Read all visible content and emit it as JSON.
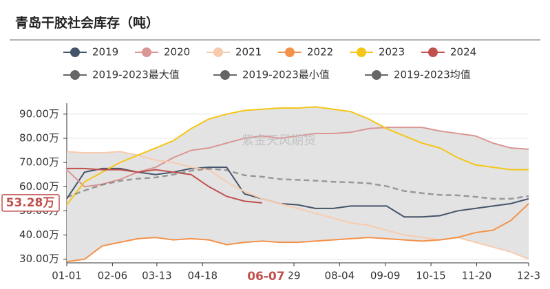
{
  "chart_data": {
    "type": "line",
    "title": "青岛干胶社会库存（吨）",
    "watermark": "紫金天风期货",
    "x": [
      0,
      14,
      28,
      42,
      56,
      70,
      84,
      98,
      112,
      126,
      140,
      154,
      168,
      182,
      196,
      210,
      224,
      238,
      252,
      266,
      280,
      294,
      308,
      322,
      336,
      350,
      364
    ],
    "xlim": [
      0,
      364
    ],
    "xticks": [
      {
        "value": 0,
        "label": "01-01"
      },
      {
        "value": 36,
        "label": "02-06"
      },
      {
        "value": 71,
        "label": "03-13"
      },
      {
        "value": 107,
        "label": "04-18"
      },
      {
        "value": 179,
        "label": "29"
      },
      {
        "value": 215,
        "label": "08-04"
      },
      {
        "value": 251,
        "label": "09-09"
      },
      {
        "value": 287,
        "label": "10-15"
      },
      {
        "value": 323,
        "label": "11-20"
      },
      {
        "value": 364,
        "label": "12-3"
      }
    ],
    "ylim": [
      28.5,
      94.5
    ],
    "yticks": [
      {
        "value": 30,
        "label": "30.00万"
      },
      {
        "value": 40,
        "label": "40.00万"
      },
      {
        "value": 50,
        "label": "50.00万"
      },
      {
        "value": 60,
        "label": "60.00万"
      },
      {
        "value": 70,
        "label": "70.00万"
      },
      {
        "value": 80,
        "label": "80.00万"
      },
      {
        "value": 90,
        "label": "90.00万"
      }
    ],
    "grid": true,
    "x_highlight": {
      "value": 157,
      "label": "06-07"
    },
    "y_highlight": {
      "value": 53.28,
      "label": "53.28万"
    },
    "series": [
      {
        "name": "2019",
        "color": "#44546a",
        "kind": "line",
        "values": [
          55,
          66,
          67.5,
          67.5,
          66,
          65,
          66,
          67.5,
          68,
          68,
          57,
          55,
          53,
          52.5,
          51,
          51,
          52,
          52,
          52,
          47.5,
          47.5,
          48,
          50,
          51,
          52,
          53,
          55
        ]
      },
      {
        "name": "2020",
        "color": "#d99694",
        "kind": "line",
        "values": [
          67,
          60,
          61,
          63,
          66,
          68,
          72,
          75,
          76,
          78,
          80,
          81,
          80,
          81,
          82,
          82,
          82.5,
          84,
          84.5,
          84.5,
          84.5,
          83,
          82,
          81,
          78,
          76,
          75.5
        ]
      },
      {
        "name": "2021",
        "color": "#f8cbad",
        "kind": "line",
        "values": [
          74.5,
          74,
          74,
          74.5,
          73,
          71,
          70,
          68,
          67,
          62,
          58,
          55,
          53,
          51,
          49,
          47,
          45,
          44,
          42,
          40,
          39,
          38,
          39,
          37,
          35,
          33,
          30
        ]
      },
      {
        "name": "2022",
        "color": "#f4914a",
        "kind": "line",
        "values": [
          29,
          30,
          35.5,
          37,
          38.5,
          39,
          38,
          38.5,
          38,
          36,
          37,
          37.5,
          37,
          37,
          37.5,
          38,
          38.5,
          39,
          38.5,
          38,
          37.5,
          38,
          39,
          41,
          42,
          46,
          53
        ]
      },
      {
        "name": "2023",
        "color": "#f5c518",
        "kind": "line",
        "values": [
          52.5,
          62,
          66,
          70,
          73,
          76,
          79,
          84,
          88,
          90,
          91.5,
          92,
          92.5,
          92.5,
          93,
          92,
          91,
          88,
          84,
          81,
          78,
          76,
          72,
          69,
          68,
          67,
          67
        ]
      },
      {
        "name": "2024",
        "color": "#c0504d",
        "kind": "line",
        "values": [
          67.5,
          67.5,
          67,
          67,
          66,
          67,
          66,
          65,
          60,
          56,
          54,
          53.28,
          null,
          null,
          null,
          null,
          null,
          null,
          null,
          null,
          null,
          null,
          null,
          null,
          null,
          null,
          null
        ]
      },
      {
        "name": "2019-2023最大值",
        "color": "#666666",
        "kind": "band-max",
        "values": [
          74.5,
          74,
          74,
          74.5,
          73,
          76,
          79,
          84,
          88,
          90,
          91.5,
          92,
          92.5,
          92.5,
          93,
          92,
          91,
          88,
          84.5,
          84.5,
          84.5,
          83,
          82,
          81,
          78,
          76,
          75.5
        ]
      },
      {
        "name": "2019-2023最小值",
        "color": "#666666",
        "kind": "band-min",
        "values": [
          29,
          30,
          35.5,
          37,
          38.5,
          39,
          38,
          38.5,
          38,
          36,
          37,
          37.5,
          37,
          37,
          37.5,
          38,
          38.5,
          39,
          38.5,
          38,
          37.5,
          38,
          39,
          37,
          35,
          33,
          30
        ]
      },
      {
        "name": "2019-2023均值",
        "color": "#666666",
        "kind": "dashed",
        "band_color": "#e3e3e3",
        "values": [
          55.6,
          58.4,
          60.8,
          62.4,
          63.3,
          63.8,
          65,
          66.6,
          67.4,
          66.8,
          64.7,
          64.1,
          63.1,
          62.8,
          62.5,
          62,
          61.8,
          61.4,
          60.2,
          58.2,
          57.3,
          56.6,
          56.4,
          55.8,
          55,
          55,
          56.1
        ]
      }
    ]
  }
}
